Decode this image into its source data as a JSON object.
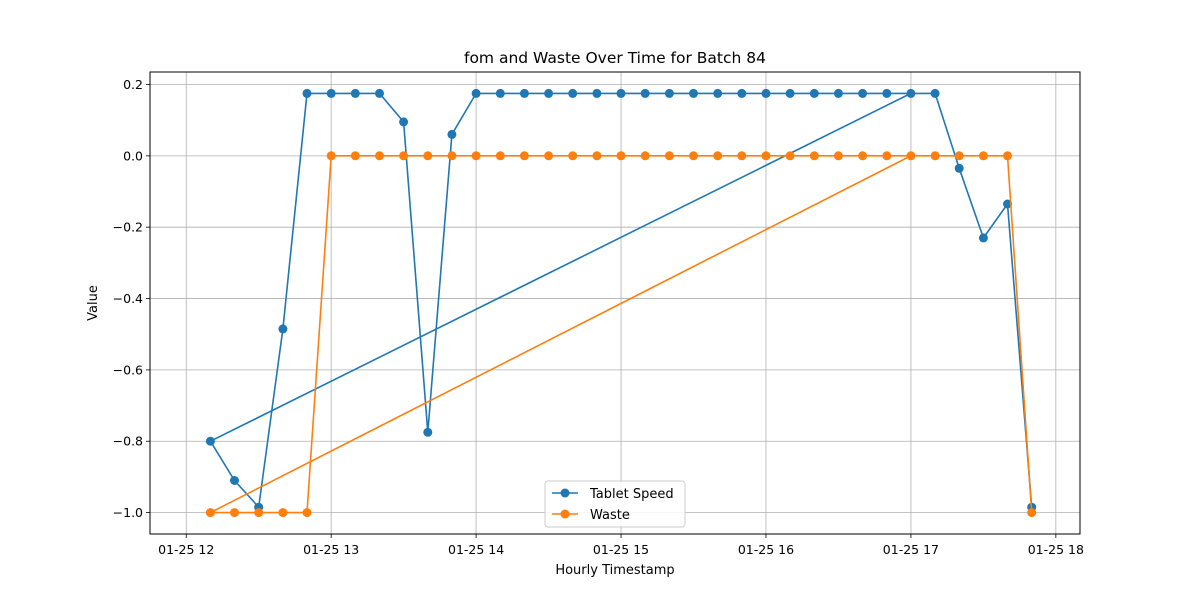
{
  "chart_data": {
    "type": "line",
    "title": "fom and Waste Over Time for Batch 84",
    "xlabel": "Hourly Timestamp",
    "ylabel": "Value",
    "x_tick_labels": [
      "01-25 12",
      "01-25 13",
      "01-25 14",
      "01-25 15",
      "01-25 16",
      "01-25 17",
      "01-25 18"
    ],
    "y_tick_labels": [
      "−1.0",
      "−0.8",
      "−0.6",
      "−0.4",
      "−0.2",
      "0.0",
      "0.2"
    ],
    "xlim": [
      "01-25 11:45",
      "01-25 18:10"
    ],
    "ylim": [
      -1.06,
      0.235
    ],
    "grid": true,
    "legend_position": "bottom-center",
    "x": [
      "01-25 12:10",
      "01-25 12:20",
      "01-25 12:30",
      "01-25 12:40",
      "01-25 12:50",
      "01-25 13:00",
      "01-25 13:10",
      "01-25 13:20",
      "01-25 13:30",
      "01-25 13:40",
      "01-25 13:50",
      "01-25 14:00",
      "01-25 14:10",
      "01-25 14:20",
      "01-25 14:30",
      "01-25 14:40",
      "01-25 14:50",
      "01-25 15:00",
      "01-25 15:10",
      "01-25 15:20",
      "01-25 15:30",
      "01-25 15:40",
      "01-25 15:50",
      "01-25 16:00",
      "01-25 16:10",
      "01-25 16:20",
      "01-25 16:30",
      "01-25 16:40",
      "01-25 16:50",
      "01-25 17:00",
      "01-25 17:10",
      "01-25 17:20",
      "01-25 17:30",
      "01-25 17:40",
      "01-25 17:50"
    ],
    "plot_order": [
      0,
      1,
      2,
      3,
      4,
      5,
      6,
      7,
      8,
      9,
      10,
      11,
      12,
      13,
      14,
      15,
      16,
      17,
      18,
      19,
      20,
      21,
      22,
      23,
      24,
      25,
      26,
      27,
      28,
      29,
      30,
      31,
      32,
      33,
      34
    ],
    "series": [
      {
        "name": "Tablet Speed",
        "color": "#1f77b4",
        "values": [
          -0.8,
          0.175,
          0.175,
          0.175,
          0.175,
          0.175,
          0.175,
          0.175,
          0.175,
          0.175,
          0.175,
          0.175,
          0.175,
          0.175,
          0.175,
          0.175,
          0.175,
          0.175,
          0.175,
          0.175,
          0.175,
          0.175,
          0.175,
          0.175,
          0.175,
          0.175,
          0.175,
          0.175,
          0.175,
          0.175,
          0.175,
          -0.035,
          -0.23,
          -0.135,
          -0.985
        ],
        "first_segment_values": [
          -0.8,
          -0.91,
          -0.985,
          -0.485,
          0.175,
          0.175,
          0.175,
          0.175,
          0.095,
          -0.775,
          0.06
        ]
      },
      {
        "name": "Waste",
        "color": "#ff7f0e",
        "values": [
          -1.0,
          -1.0,
          -1.0,
          -1.0,
          -1.0,
          0.0,
          0.0,
          0.0,
          0.0,
          0.0,
          0.0,
          0.0,
          0.0,
          0.0,
          0.0,
          0.0,
          0.0,
          0.0,
          0.0,
          0.0,
          0.0,
          0.0,
          0.0,
          0.0,
          0.0,
          0.0,
          0.0,
          0.0,
          0.0,
          0.0,
          0.0,
          0.0,
          0.0,
          0.0,
          -1.0
        ]
      }
    ]
  }
}
